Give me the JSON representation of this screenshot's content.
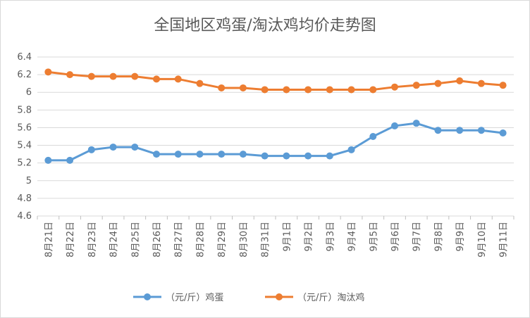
{
  "chart_data": {
    "type": "line",
    "title": "全国地区鸡蛋/淘汰鸡均价走势图",
    "xlabel": "",
    "ylabel": "",
    "categories": [
      "8月21日",
      "8月22日",
      "8月23日",
      "8月24日",
      "8月25日",
      "8月26日",
      "8月27日",
      "8月28日",
      "8月29日",
      "8月30日",
      "8月31日",
      "9月1日",
      "9月2日",
      "9月3日",
      "9月4日",
      "9月5日",
      "9月6日",
      "9月7日",
      "9月8日",
      "9月9日",
      "9月10日",
      "9月11日"
    ],
    "yticks": [
      "4.6",
      "4.8",
      "5",
      "5.2",
      "5.4",
      "5.6",
      "5.8",
      "6",
      "6.2",
      "6.4"
    ],
    "ylim": [
      4.6,
      6.4
    ],
    "grid": true,
    "legend_position": "bottom",
    "series": [
      {
        "name": "（元/斤）鸡蛋",
        "color": "#5b9bd5",
        "values": [
          5.23,
          5.23,
          5.35,
          5.38,
          5.38,
          5.3,
          5.3,
          5.3,
          5.3,
          5.3,
          5.28,
          5.28,
          5.28,
          5.28,
          5.35,
          5.5,
          5.62,
          5.65,
          5.57,
          5.57,
          5.57,
          5.54
        ]
      },
      {
        "name": "（元/斤）淘汰鸡",
        "color": "#ed7d31",
        "values": [
          6.23,
          6.2,
          6.18,
          6.18,
          6.18,
          6.15,
          6.15,
          6.1,
          6.05,
          6.05,
          6.03,
          6.03,
          6.03,
          6.03,
          6.03,
          6.03,
          6.06,
          6.08,
          6.1,
          6.13,
          6.1,
          6.08
        ]
      }
    ]
  }
}
